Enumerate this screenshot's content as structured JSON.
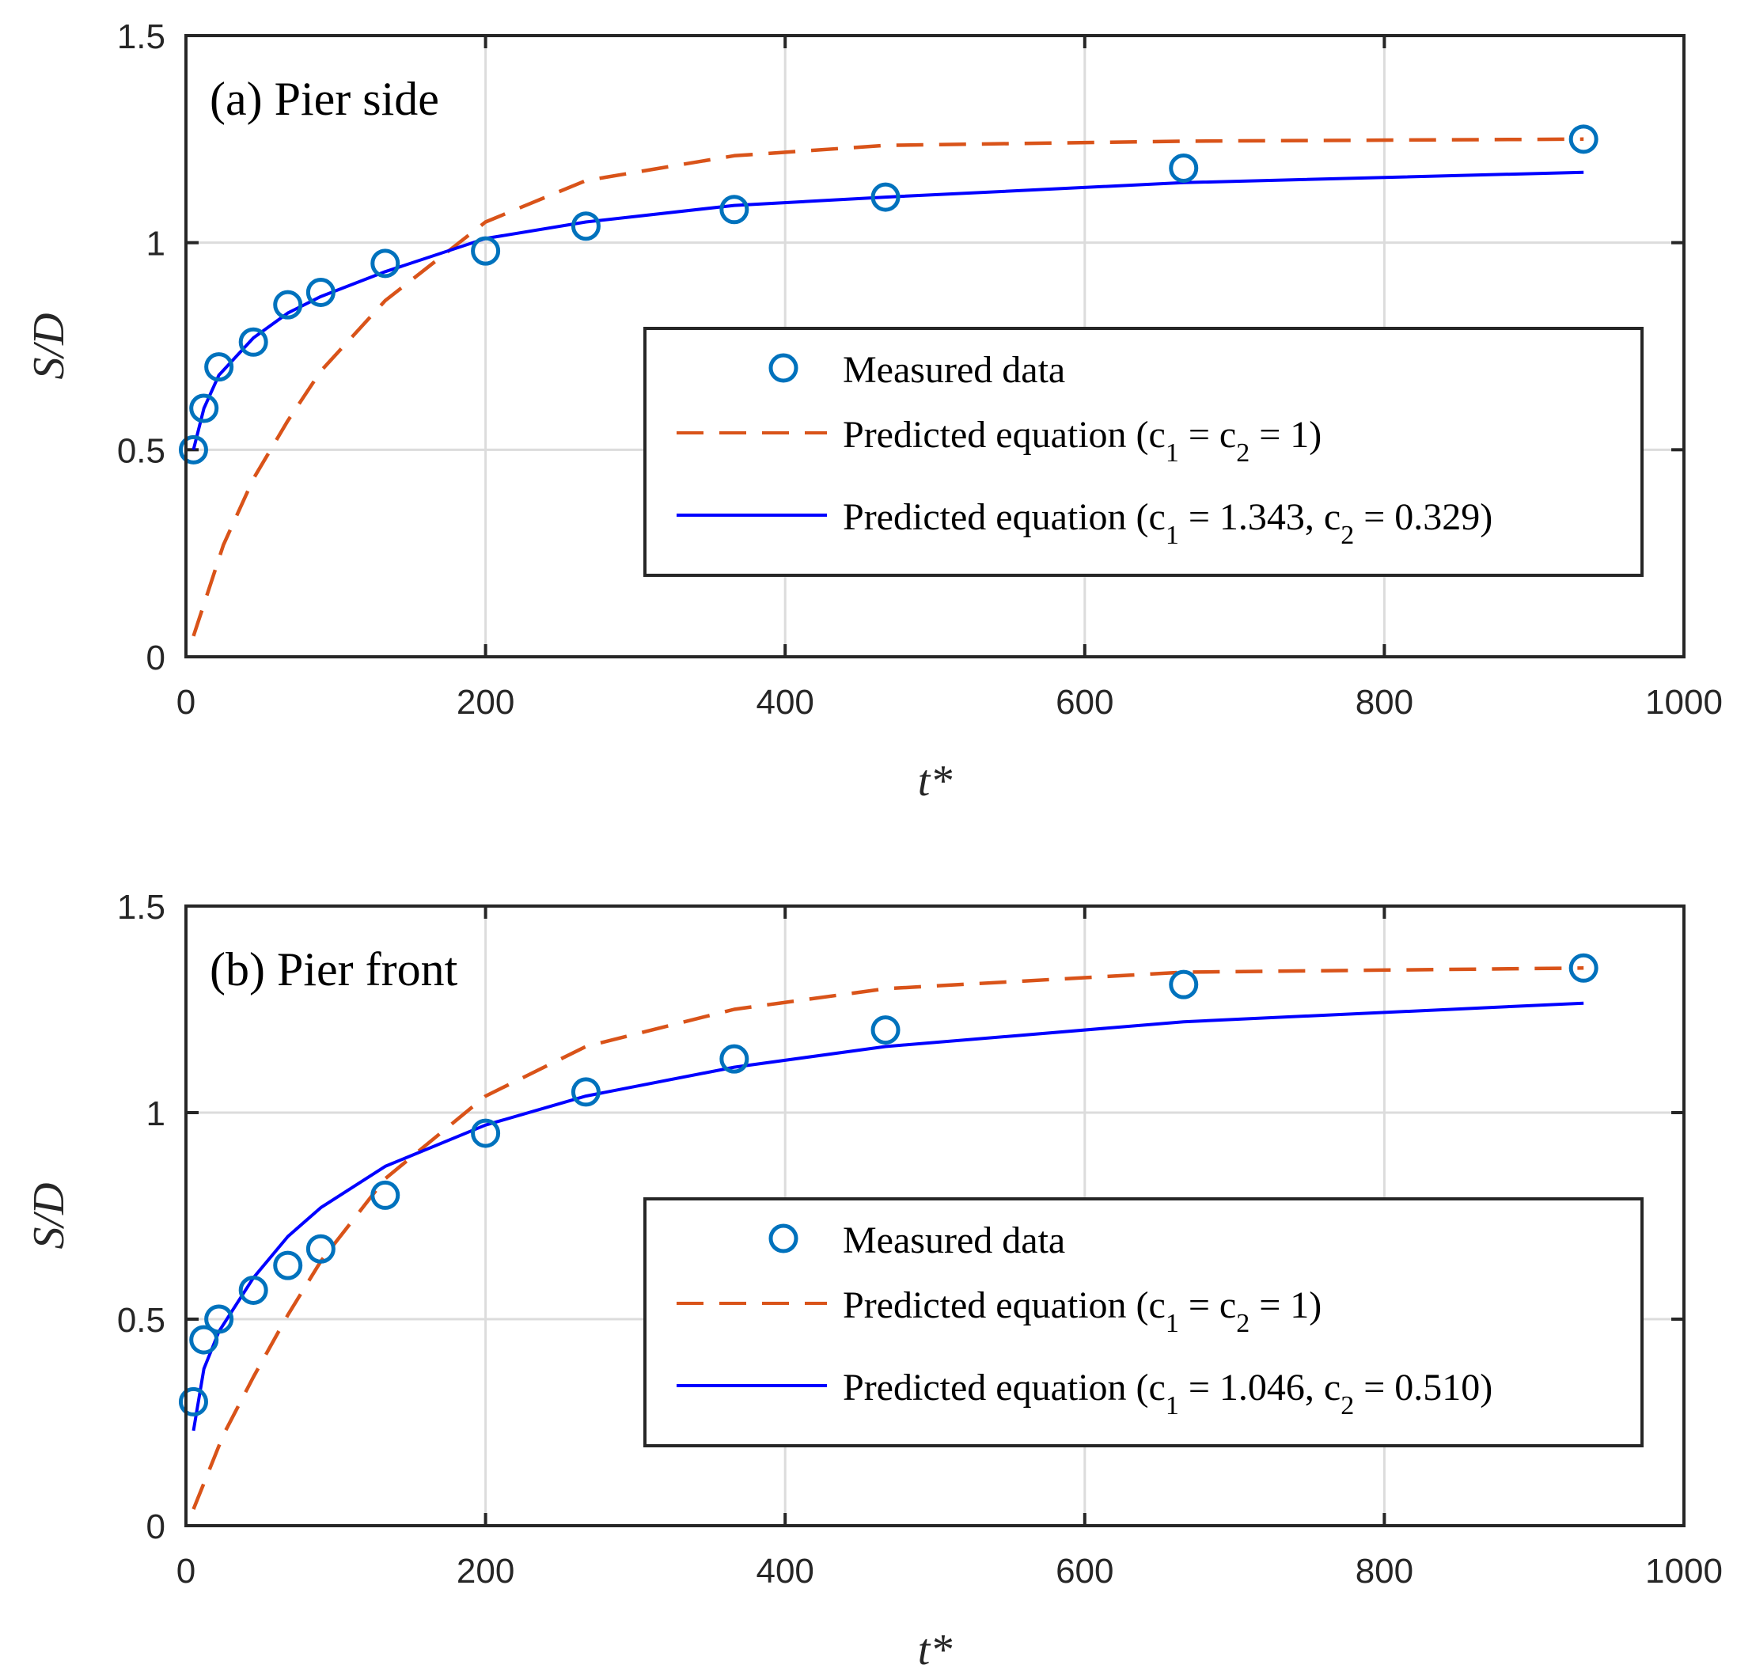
{
  "chart_data": [
    {
      "type": "line",
      "title": "(a) Pier side",
      "xlabel": "t*",
      "ylabel": "S/D",
      "xlim": [
        0,
        1000
      ],
      "ylim": [
        0,
        1.5
      ],
      "xticks": [
        "0",
        "200",
        "400",
        "600",
        "800",
        "1000"
      ],
      "yticks": [
        "0",
        "0.5",
        "1",
        "1.5"
      ],
      "grid": true,
      "legend_position": "lower-right",
      "measured": {
        "name": "Measured data",
        "color": "#0072BD",
        "x": [
          5,
          12,
          22,
          45,
          68,
          90,
          133,
          200,
          267,
          366,
          467,
          666,
          933
        ],
        "y": [
          0.5,
          0.6,
          0.7,
          0.76,
          0.85,
          0.88,
          0.95,
          0.98,
          1.04,
          1.08,
          1.11,
          1.18,
          1.25
        ]
      },
      "series": [
        {
          "name": "Predicted equation (c1 = c2 = 1)",
          "label_main": "Predicted equation (c",
          "label_tail": " = c",
          "label_end": " = 1)",
          "sub1": "1",
          "sub2": "2",
          "style": "dashed",
          "color": "#D95319",
          "x": [
            5,
            25,
            45,
            68,
            90,
            133,
            200,
            267,
            366,
            467,
            666,
            933
          ],
          "y": [
            0.05,
            0.27,
            0.43,
            0.57,
            0.69,
            0.86,
            1.05,
            1.15,
            1.21,
            1.235,
            1.245,
            1.25
          ]
        },
        {
          "name": "Predicted equation (c1 = 1.343, c2 = 0.329)",
          "label_main": "Predicted equation (c",
          "label_tail": " = 1.343, c",
          "label_end": " = 0.329)",
          "sub1": "1",
          "sub2": "2",
          "style": "solid",
          "color": "#0000FF",
          "x": [
            5,
            12,
            22,
            45,
            68,
            90,
            133,
            200,
            267,
            366,
            467,
            666,
            933
          ],
          "y": [
            0.5,
            0.6,
            0.68,
            0.77,
            0.83,
            0.87,
            0.93,
            1.01,
            1.05,
            1.09,
            1.11,
            1.145,
            1.17
          ]
        }
      ]
    },
    {
      "type": "line",
      "title": "(b) Pier front",
      "xlabel": "t*",
      "ylabel": "S/D",
      "xlim": [
        0,
        1000
      ],
      "ylim": [
        0,
        1.5
      ],
      "xticks": [
        "0",
        "200",
        "400",
        "600",
        "800",
        "1000"
      ],
      "yticks": [
        "0",
        "0.5",
        "1",
        "1.5"
      ],
      "grid": true,
      "legend_position": "lower-right",
      "measured": {
        "name": "Measured data",
        "color": "#0072BD",
        "x": [
          5,
          12,
          22,
          45,
          68,
          90,
          133,
          200,
          267,
          366,
          467,
          666,
          933
        ],
        "y": [
          0.3,
          0.45,
          0.5,
          0.57,
          0.63,
          0.67,
          0.8,
          0.95,
          1.05,
          1.13,
          1.2,
          1.31,
          1.35
        ]
      },
      "series": [
        {
          "name": "Predicted equation (c1 = c2 = 1)",
          "label_main": "Predicted equation (c",
          "label_tail": " = c",
          "label_end": " = 1)",
          "sub1": "1",
          "sub2": "2",
          "style": "dashed",
          "color": "#D95319",
          "x": [
            5,
            25,
            45,
            68,
            90,
            133,
            200,
            267,
            366,
            467,
            666,
            933
          ],
          "y": [
            0.04,
            0.22,
            0.36,
            0.51,
            0.64,
            0.84,
            1.04,
            1.16,
            1.25,
            1.3,
            1.34,
            1.35
          ]
        },
        {
          "name": "Predicted equation (c1 = 1.046, c2 = 0.510)",
          "label_main": "Predicted equation (c",
          "label_tail": " = 1.046, c",
          "label_end": " = 0.510)",
          "sub1": "1",
          "sub2": "2",
          "style": "solid",
          "color": "#0000FF",
          "x": [
            5,
            12,
            22,
            45,
            68,
            90,
            133,
            200,
            267,
            366,
            467,
            666,
            933
          ],
          "y": [
            0.23,
            0.38,
            0.47,
            0.6,
            0.7,
            0.77,
            0.87,
            0.97,
            1.04,
            1.11,
            1.16,
            1.22,
            1.265
          ]
        }
      ]
    }
  ]
}
